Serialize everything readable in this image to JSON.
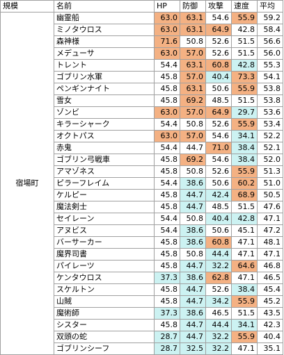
{
  "headers": [
    "規模",
    "名前",
    "HP",
    "防御",
    "攻撃",
    "速度",
    "平均"
  ],
  "scale_label": "宿場町",
  "colors": {
    "high": "#f4b183",
    "low": "#ccf2f2"
  },
  "rows": [
    {
      "name": "幽霊船",
      "hp": "63.0",
      "def": "63.1",
      "atk": "54.6",
      "spd": "55.9",
      "avg": "59.2",
      "hl": [
        "h",
        "h",
        "",
        "h",
        ""
      ]
    },
    {
      "name": "ミノタウロス",
      "hp": "63.0",
      "def": "63.1",
      "atk": "64.9",
      "spd": "42.8",
      "avg": "58.4",
      "hl": [
        "h",
        "h",
        "h",
        "",
        ""
      ]
    },
    {
      "name": "森神様",
      "hp": "71.6",
      "def": "50.8",
      "atk": "52.6",
      "spd": "51.5",
      "avg": "56.6",
      "hl": [
        "h",
        "",
        "",
        "",
        ""
      ]
    },
    {
      "name": "メデューサ",
      "hp": "63.0",
      "def": "57.0",
      "atk": "52.6",
      "spd": "51.5",
      "avg": "56.0",
      "hl": [
        "h",
        "h",
        "",
        "",
        ""
      ]
    },
    {
      "name": "トレント",
      "hp": "54.4",
      "def": "63.1",
      "atk": "60.8",
      "spd": "42.8",
      "avg": "55.3",
      "hl": [
        "",
        "h",
        "h",
        "l",
        ""
      ]
    },
    {
      "name": "ゴブリン水軍",
      "hp": "45.8",
      "def": "57.0",
      "atk": "40.4",
      "spd": "73.3",
      "avg": "54.1",
      "hl": [
        "",
        "h",
        "l",
        "h",
        ""
      ]
    },
    {
      "name": "ペンギンナイト",
      "hp": "45.8",
      "def": "63.1",
      "atk": "50.6",
      "spd": "55.9",
      "avg": "53.8",
      "hl": [
        "",
        "h",
        "",
        "h",
        ""
      ]
    },
    {
      "name": "雪女",
      "hp": "45.8",
      "def": "69.2",
      "atk": "48.5",
      "spd": "51.5",
      "avg": "53.8",
      "hl": [
        "",
        "h",
        "",
        "",
        ""
      ]
    },
    {
      "name": "ゾンビ",
      "hp": "63.0",
      "def": "57.0",
      "atk": "64.9",
      "spd": "29.7",
      "avg": "53.6",
      "hl": [
        "h",
        "h",
        "h",
        "l",
        ""
      ]
    },
    {
      "name": "キラーシャーク",
      "hp": "54.4",
      "def": "50.8",
      "atk": "52.6",
      "spd": "55.9",
      "avg": "53.4",
      "hl": [
        "",
        "",
        "",
        "h",
        ""
      ]
    },
    {
      "name": "オクトパス",
      "hp": "63.0",
      "def": "57.0",
      "atk": "54.6",
      "spd": "34.1",
      "avg": "52.2",
      "hl": [
        "h",
        "h",
        "",
        "l",
        ""
      ]
    },
    {
      "name": "赤鬼",
      "hp": "54.4",
      "def": "44.7",
      "atk": "71.0",
      "spd": "38.4",
      "avg": "52.1",
      "hl": [
        "",
        "",
        "h",
        "l",
        ""
      ]
    },
    {
      "name": "ゴブリン弓戦車",
      "hp": "45.8",
      "def": "69.2",
      "atk": "54.6",
      "spd": "38.4",
      "avg": "52.0",
      "hl": [
        "",
        "h",
        "",
        "l",
        ""
      ]
    },
    {
      "name": "アマゾネス",
      "hp": "45.8",
      "def": "50.8",
      "atk": "52.6",
      "spd": "55.9",
      "avg": "51.3",
      "hl": [
        "",
        "",
        "",
        "h",
        ""
      ]
    },
    {
      "name": "ピラーフレイム",
      "hp": "54.4",
      "def": "38.6",
      "atk": "50.6",
      "spd": "60.2",
      "avg": "51.0",
      "hl": [
        "",
        "l",
        "",
        "h",
        ""
      ]
    },
    {
      "name": "ケルピー",
      "hp": "45.8",
      "def": "44.7",
      "atk": "42.4",
      "spd": "68.9",
      "avg": "50.5",
      "hl": [
        "",
        "l",
        "l",
        "h",
        ""
      ]
    },
    {
      "name": "魔法剣士",
      "hp": "45.8",
      "def": "44.7",
      "atk": "48.5",
      "spd": "51.5",
      "avg": "47.6",
      "hl": [
        "",
        "l",
        "",
        "",
        ""
      ]
    },
    {
      "name": "セイレーン",
      "hp": "54.4",
      "def": "50.8",
      "atk": "40.4",
      "spd": "42.8",
      "avg": "47.1",
      "hl": [
        "",
        "",
        "l",
        "l",
        ""
      ]
    },
    {
      "name": "アヌビス",
      "hp": "54.4",
      "def": "38.6",
      "atk": "50.6",
      "spd": "45.1",
      "avg": "47.2",
      "hl": [
        "",
        "l",
        "",
        "",
        ""
      ]
    },
    {
      "name": "バーサーカー",
      "hp": "45.8",
      "def": "38.6",
      "atk": "60.8",
      "spd": "47.1",
      "avg": "48.1",
      "hl": [
        "",
        "l",
        "h",
        "",
        ""
      ]
    },
    {
      "name": "魔界司書",
      "hp": "45.8",
      "def": "50.8",
      "atk": "44.4",
      "spd": "47.1",
      "avg": "47.1",
      "hl": [
        "",
        "",
        "l",
        "",
        ""
      ]
    },
    {
      "name": "パイレーツ",
      "hp": "45.8",
      "def": "44.7",
      "atk": "32.2",
      "spd": "64.6",
      "avg": "46.8",
      "hl": [
        "",
        "l",
        "l",
        "h",
        ""
      ]
    },
    {
      "name": "ケンタウロス",
      "hp": "37.3",
      "def": "38.6",
      "atk": "62.8",
      "spd": "47.1",
      "avg": "46.5",
      "hl": [
        "l",
        "l",
        "h",
        "",
        ""
      ]
    },
    {
      "name": "スケルトン",
      "hp": "45.8",
      "def": "44.7",
      "atk": "52.6",
      "spd": "38.4",
      "avg": "45.4",
      "hl": [
        "",
        "l",
        "",
        "l",
        ""
      ]
    },
    {
      "name": "山賊",
      "hp": "45.8",
      "def": "44.7",
      "atk": "34.2",
      "spd": "55.9",
      "avg": "45.2",
      "hl": [
        "",
        "l",
        "l",
        "h",
        ""
      ]
    },
    {
      "name": "魔術師",
      "hp": "37.3",
      "def": "38.6",
      "atk": "46.5",
      "spd": "51.5",
      "avg": "43.5",
      "hl": [
        "l",
        "l",
        "",
        "",
        ""
      ]
    },
    {
      "name": "シスター",
      "hp": "45.8",
      "def": "44.7",
      "atk": "44.4",
      "spd": "34.1",
      "avg": "42.3",
      "hl": [
        "",
        "l",
        "l",
        "l",
        ""
      ]
    },
    {
      "name": "双頭の蛇",
      "hp": "28.7",
      "def": "44.7",
      "atk": "32.2",
      "spd": "55.9",
      "avg": "40.4",
      "hl": [
        "l",
        "l",
        "l",
        "h",
        ""
      ]
    },
    {
      "name": "ゴブリンシーフ",
      "hp": "28.7",
      "def": "32.5",
      "atk": "32.2",
      "spd": "47.1",
      "avg": "35.1",
      "hl": [
        "l",
        "l",
        "l",
        "",
        ""
      ]
    }
  ]
}
